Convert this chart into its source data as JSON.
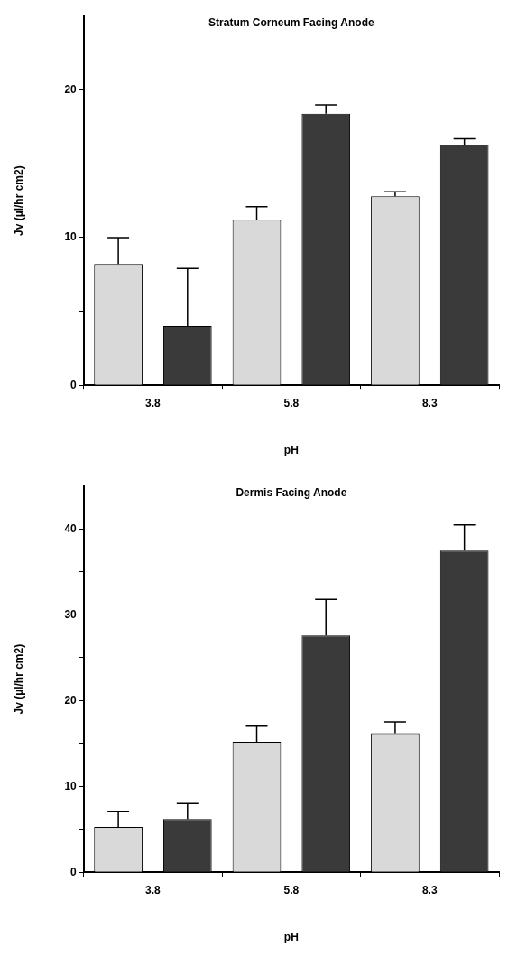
{
  "chart_data": [
    {
      "type": "bar",
      "title": "Stratum Corneum Facing Anode",
      "xlabel": "pH",
      "ylabel": "Jv (µl/hr cm2)",
      "categories": [
        "3.8",
        "5.8",
        "8.3"
      ],
      "series": [
        {
          "color": "#d9d9d9",
          "values": [
            8.2,
            11.2,
            12.8
          ],
          "errors": [
            [
              8.2,
              10.0
            ],
            [
              11.2,
              12.1
            ],
            [
              12.8,
              13.1
            ]
          ]
        },
        {
          "color": "#3a3a3a",
          "values": [
            4.0,
            18.4,
            16.3
          ],
          "errors": [
            [
              4.0,
              7.9
            ],
            [
              18.4,
              19.0
            ],
            [
              16.3,
              16.7
            ]
          ]
        }
      ],
      "ylim": [
        0,
        25
      ],
      "yticks": [
        0,
        {
          "value": 5,
          "label": null
        },
        10,
        {
          "value": 15,
          "label": null
        },
        20
      ],
      "grid": false
    },
    {
      "type": "bar",
      "title": "Dermis Facing Anode",
      "xlabel": "pH",
      "ylabel": "Jv (µl/hr cm2)",
      "categories": [
        "3.8",
        "5.8",
        "8.3"
      ],
      "series": [
        {
          "color": "#d9d9d9",
          "values": [
            5.3,
            15.2,
            16.2
          ],
          "errors": [
            [
              5.3,
              7.1
            ],
            [
              15.2,
              17.1
            ],
            [
              16.2,
              17.5
            ]
          ]
        },
        {
          "color": "#3a3a3a",
          "values": [
            6.2,
            27.6,
            37.5
          ],
          "errors": [
            [
              6.2,
              8.0
            ],
            [
              27.6,
              31.8
            ],
            [
              37.5,
              40.5
            ]
          ]
        }
      ],
      "ylim": [
        0,
        45
      ],
      "yticks": [
        0,
        {
          "value": 5,
          "label": null
        },
        10,
        {
          "value": 15,
          "label": null
        },
        20,
        {
          "value": 25,
          "label": null
        },
        30,
        {
          "value": 35,
          "label": null
        },
        40
      ],
      "grid": false
    }
  ]
}
